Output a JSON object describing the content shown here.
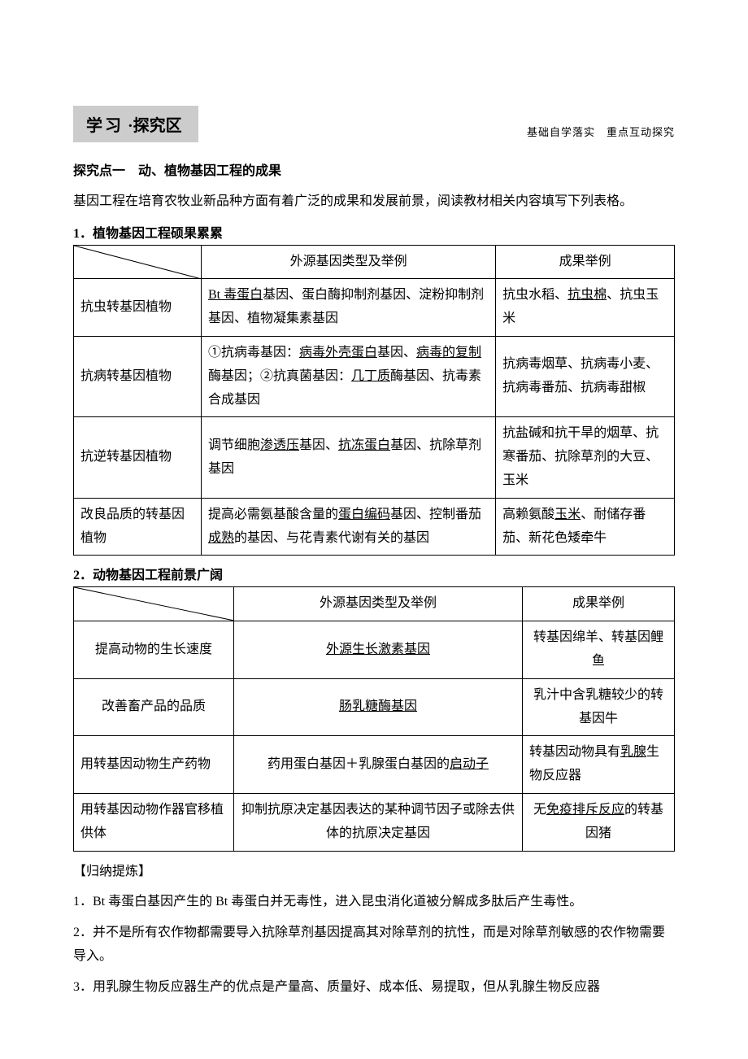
{
  "header": {
    "title_a": "学习",
    "title_b": "·探究区",
    "subtitle": "基础自学落实　重点互动探究"
  },
  "intro": {
    "point_title": "探究点一　动、植物基因工程的成果",
    "desc": "基因工程在培育农牧业新品种方面有着广泛的成果和发展前景，阅读教材相关内容填写下列表格。"
  },
  "table1": {
    "title": "1．植物基因工程硕果累累",
    "headers": [
      "",
      "外源基因类型及举例",
      "成果举例"
    ],
    "rows": [
      {
        "c1": "抗虫转基因植物",
        "c2": {
          "parts": [
            {
              "t": "Bt 毒蛋白",
              "u": true
            },
            {
              "t": "基因、蛋白酶抑制剂基因、淀粉抑制剂基因、植物凝集素基因"
            }
          ]
        },
        "c3": {
          "parts": [
            {
              "t": "抗虫水稻、"
            },
            {
              "t": "抗虫棉",
              "u": true
            },
            {
              "t": "、抗虫玉米"
            }
          ]
        }
      },
      {
        "c1": "抗病转基因植物",
        "c2": {
          "parts": [
            {
              "t": "①抗病毒基因："
            },
            {
              "t": "病毒外壳蛋白",
              "u": true
            },
            {
              "t": "基因、"
            },
            {
              "t": "病毒的复制",
              "u": true
            },
            {
              "t": "酶基因；②抗真菌基因："
            },
            {
              "t": "几丁质",
              "u": true
            },
            {
              "t": "酶基因、抗毒素合成基因"
            }
          ]
        },
        "c3": {
          "parts": [
            {
              "t": "抗病毒烟草、抗病毒小麦、抗病毒番茄、抗病毒甜椒"
            }
          ]
        }
      },
      {
        "c1": "抗逆转基因植物",
        "c2": {
          "parts": [
            {
              "t": "调节细胞"
            },
            {
              "t": "渗透压",
              "u": true
            },
            {
              "t": "基因、"
            },
            {
              "t": "抗冻蛋白",
              "u": true
            },
            {
              "t": "基因、抗除草剂基因"
            }
          ]
        },
        "c3": {
          "parts": [
            {
              "t": "抗盐碱和抗干旱的烟草、抗寒番茄、抗除草剂的大豆、玉米"
            }
          ]
        }
      },
      {
        "c1": "改良品质的转基因植物",
        "c2": {
          "parts": [
            {
              "t": "提高必需氨基酸含量的"
            },
            {
              "t": "蛋白编码",
              "u": true
            },
            {
              "t": "基因、控制番茄"
            },
            {
              "t": "成熟",
              "u": true
            },
            {
              "t": "的基因、与花青素代谢有关的基因"
            }
          ]
        },
        "c3": {
          "parts": [
            {
              "t": "高赖氨酸"
            },
            {
              "t": "玉米",
              "u": true
            },
            {
              "t": "、耐储存番茄、新花色矮牵牛"
            }
          ]
        }
      }
    ]
  },
  "table2": {
    "title": "2．动物基因工程前景广阔",
    "headers": [
      "",
      "外源基因类型及举例",
      "成果举例"
    ],
    "rows": [
      {
        "c1": "提高动物的生长速度",
        "c2": {
          "parts": [
            {
              "t": "外源生长激素基因",
              "u": true
            }
          ]
        },
        "c3": {
          "parts": [
            {
              "t": "转基因绵羊、转基因鲤鱼"
            }
          ]
        }
      },
      {
        "c1": "改善畜产品的品质",
        "c2": {
          "parts": [
            {
              "t": "肠乳糖酶基因",
              "u": true
            }
          ]
        },
        "c3": {
          "parts": [
            {
              "t": "乳汁中含乳糖较少的转基因牛"
            }
          ]
        }
      },
      {
        "c1": "用转基因动物生产药物",
        "c2": {
          "parts": [
            {
              "t": "药用蛋白基因＋乳腺蛋白基因的"
            },
            {
              "t": "启动子",
              "u": true
            }
          ]
        },
        "c3": {
          "parts": [
            {
              "t": "转基因动物具有"
            },
            {
              "t": "乳腺",
              "u": true
            },
            {
              "t": "生物反应器"
            }
          ]
        }
      },
      {
        "c1": "用转基因动物作器官移植供体",
        "c2": {
          "parts": [
            {
              "t": "抑制抗原决定基因表达的某种调节因子或除去供体的抗原决定基因"
            }
          ]
        },
        "c3": {
          "parts": [
            {
              "t": "无"
            },
            {
              "t": "免疫排斥反应",
              "u": true
            },
            {
              "t": "的转基因猪"
            }
          ]
        }
      }
    ]
  },
  "summary": {
    "title": "【归纳提炼】",
    "items": [
      "1．Bt 毒蛋白基因产生的 Bt 毒蛋白并无毒性，进入昆虫消化道被分解成多肽后产生毒性。",
      "2．并不是所有农作物都需要导入抗除草剂基因提高其对除草剂的抗性，而是对除草剂敏感的农作物需要导入。",
      "3．用乳腺生物反应器生产的优点是产量高、质量好、成本低、易提取，但从乳腺生物反应器"
    ]
  },
  "colors": {
    "header_bg": "#cccccc",
    "text": "#000000",
    "border": "#000000",
    "bg": "#ffffff"
  }
}
